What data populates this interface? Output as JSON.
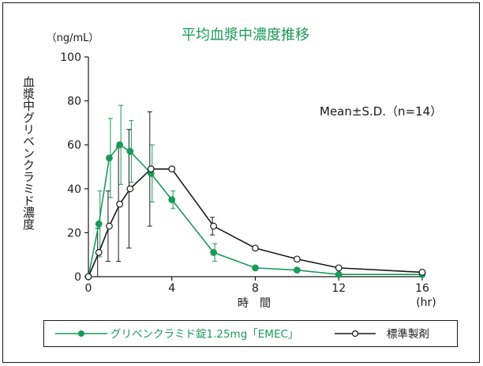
{
  "chart_data": {
    "type": "line",
    "title": "平均血漿中濃度推移",
    "unit_label": "（ng/mL）",
    "ylabel": "血漿中グリベンクラミド濃度",
    "xlabel": "時　間",
    "x_unit": "(hr)",
    "annotation": "Mean±S.D.（n=14）",
    "xlim": [
      0,
      16
    ],
    "ylim": [
      0,
      100
    ],
    "x_ticks": [
      0,
      4,
      8,
      12,
      16
    ],
    "y_ticks": [
      0,
      20,
      40,
      60,
      80,
      100
    ],
    "series": [
      {
        "name": "グリベンクラミド錠1.25mg「EMEC」",
        "color": "#1a9a5a",
        "marker": "filled-circle",
        "points": [
          {
            "x": 0,
            "y": 0
          },
          {
            "x": 0.5,
            "y": 24,
            "sd": 15
          },
          {
            "x": 1,
            "y": 54,
            "sd": 18
          },
          {
            "x": 1.5,
            "y": 60,
            "sd": 18
          },
          {
            "x": 2,
            "y": 57,
            "sd": 14
          },
          {
            "x": 3,
            "y": 47,
            "sd": 13
          },
          {
            "x": 4,
            "y": 35,
            "sd": 4
          },
          {
            "x": 6,
            "y": 11,
            "sd": 4
          },
          {
            "x": 8,
            "y": 4
          },
          {
            "x": 10,
            "y": 3
          },
          {
            "x": 12,
            "y": 1
          },
          {
            "x": 16,
            "y": 1
          }
        ]
      },
      {
        "name": "標準製剤",
        "color": "#1a1a1a",
        "marker": "open-circle",
        "points": [
          {
            "x": 0,
            "y": 0
          },
          {
            "x": 0.5,
            "y": 11,
            "sd": 11
          },
          {
            "x": 1,
            "y": 23,
            "sd": 16
          },
          {
            "x": 1.5,
            "y": 33,
            "sd": 26
          },
          {
            "x": 2,
            "y": 40,
            "sd": 27
          },
          {
            "x": 3,
            "y": 49,
            "sd": 26
          },
          {
            "x": 4,
            "y": 49
          },
          {
            "x": 6,
            "y": 23,
            "sd": 4
          },
          {
            "x": 8,
            "y": 13
          },
          {
            "x": 10,
            "y": 8
          },
          {
            "x": 12,
            "y": 4
          },
          {
            "x": 16,
            "y": 2
          }
        ]
      }
    ]
  }
}
